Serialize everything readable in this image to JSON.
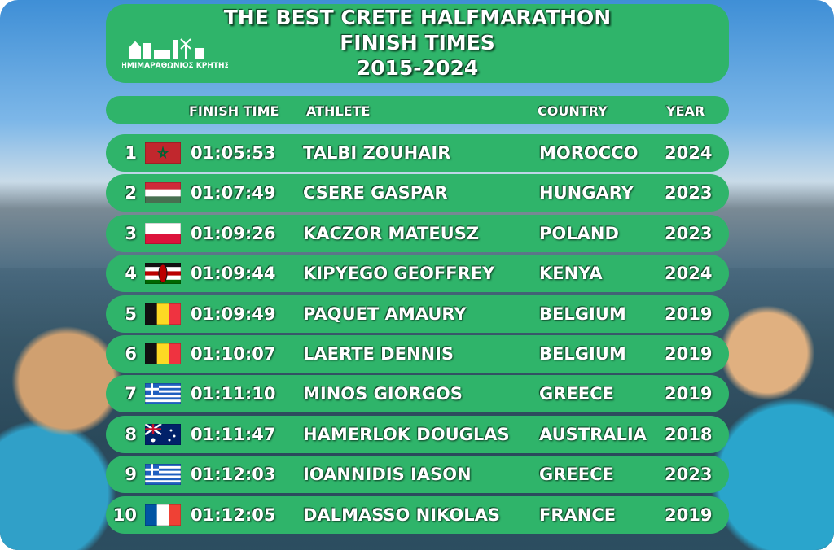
{
  "header": {
    "title": [
      "THE BEST CRETE HALFMARATHON",
      "FINISH TIMES",
      "2015-2024"
    ],
    "logo": "ΗΜΙΜΑΡΑΘΩΝΙΟΣ ΚΡΗΤΗΣ"
  },
  "table": {
    "columns": [
      "FINISH TIME",
      "ATHLETE",
      "COUNTRY",
      "YEAR"
    ],
    "rows": [
      [
        1,
        "01:05:53",
        "TALBI ZOUHAIR",
        "MOROCCO",
        2024
      ],
      [
        2,
        "01:07:49",
        "CSERE GASPAR",
        "HUNGARY",
        2023
      ],
      [
        3,
        "01:09:26",
        "KACZOR MATEUSZ",
        "POLAND",
        2023
      ],
      [
        4,
        "01:09:44",
        "KIPYEGO GEOFFREY",
        "KENYA",
        2024
      ],
      [
        5,
        "01:09:49",
        "PAQUET AMAURY",
        "BELGIUM",
        2019
      ],
      [
        6,
        "01:10:07",
        "LAERTE DENNIS",
        "BELGIUM",
        2019
      ],
      [
        7,
        "01:11:10",
        "MINOS GIORGOS",
        "GREECE",
        2019
      ],
      [
        8,
        "01:11:47",
        "HAMERLOK DOUGLAS",
        "AUSTRALIA",
        2018
      ],
      [
        9,
        "01:12:03",
        "IOANNIDIS IASON",
        "GREECE",
        2023
      ],
      [
        10,
        "01:12:05",
        "DALMASSO NIKOLAS",
        "FRANCE",
        2019
      ]
    ]
  }
}
